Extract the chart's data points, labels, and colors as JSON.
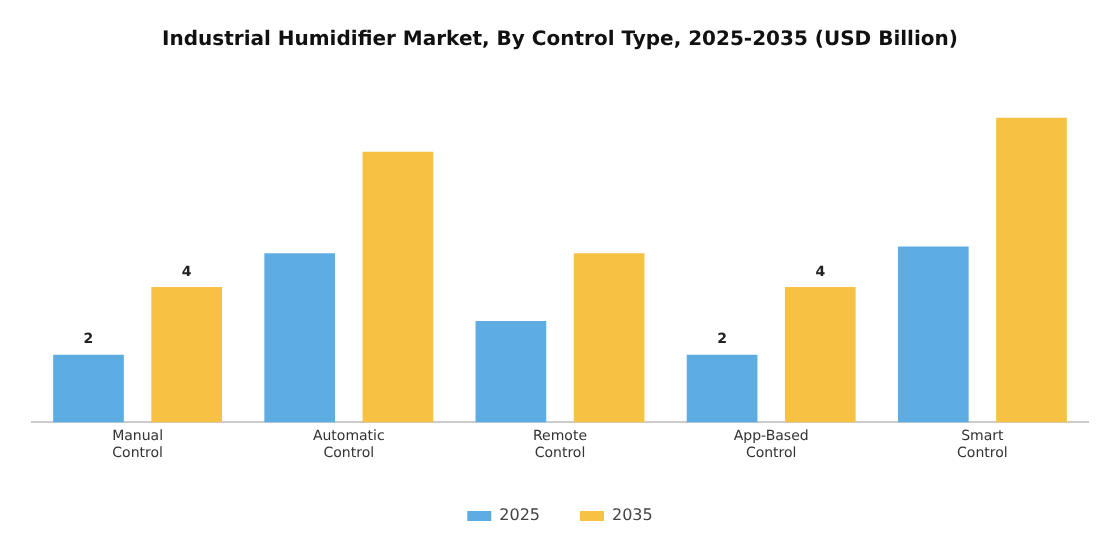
{
  "chart_data": {
    "type": "bar",
    "title": "Industrial Humidifier Market, By Control Type, 2025-2035 (USD Billion)",
    "categories": [
      "Manual Control",
      "Automatic Control",
      "Remote Control",
      "App-Based Control",
      "Smart Control"
    ],
    "tick_labels": "x",
    "series": [
      {
        "name": "2025",
        "color": "#5dade2",
        "values": [
          2,
          5,
          3,
          2,
          5.2
        ],
        "value_labels": [
          "2",
          null,
          null,
          "2",
          null
        ]
      },
      {
        "name": "2035",
        "color": "#f7c244",
        "values": [
          4,
          8,
          5,
          4,
          9
        ],
        "value_labels": [
          "4",
          null,
          null,
          "4",
          null
        ]
      }
    ],
    "grid": false,
    "legend": "bottom"
  }
}
